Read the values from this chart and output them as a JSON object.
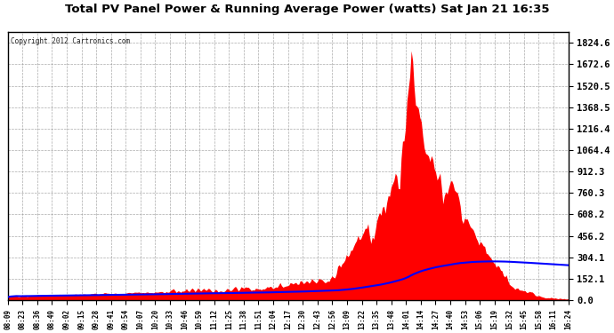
{
  "title": "Total PV Panel Power & Running Average Power (watts) Sat Jan 21 16:35",
  "copyright": "Copyright 2012 Cartronics.com",
  "background_color": "#ffffff",
  "plot_bg_color": "#ffffff",
  "bar_color": "#ff0000",
  "line_color": "#0000ff",
  "grid_color": "#888888",
  "yticks": [
    0.0,
    152.1,
    304.1,
    456.2,
    608.2,
    760.3,
    912.3,
    1064.4,
    1216.4,
    1368.5,
    1520.5,
    1672.6,
    1824.6
  ],
  "ylim": [
    0,
    1900
  ],
  "xtick_labels": [
    "08:09",
    "08:23",
    "08:36",
    "08:49",
    "09:02",
    "09:15",
    "09:28",
    "09:41",
    "09:54",
    "10:07",
    "10:20",
    "10:33",
    "10:46",
    "10:59",
    "11:12",
    "11:25",
    "11:38",
    "11:51",
    "12:04",
    "12:17",
    "12:30",
    "12:43",
    "12:56",
    "13:09",
    "13:22",
    "13:35",
    "13:48",
    "14:01",
    "14:14",
    "14:27",
    "14:40",
    "14:53",
    "15:06",
    "15:19",
    "15:32",
    "15:45",
    "15:58",
    "16:11",
    "16:24"
  ],
  "n_points": 390
}
